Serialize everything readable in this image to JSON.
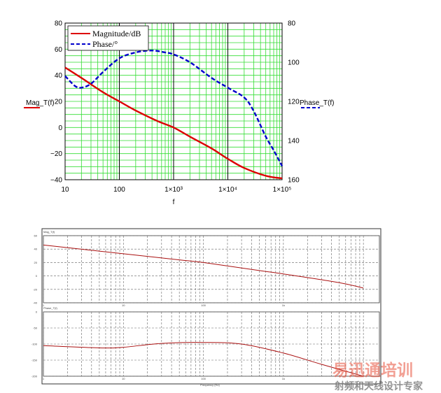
{
  "chart_data": [
    {
      "type": "line",
      "xscale": "log",
      "xlim": [
        10,
        100000
      ],
      "ylim_left": [
        -40,
        80
      ],
      "ylim_right": [
        160,
        80
      ],
      "xticks": [
        "10",
        "100",
        "1×10³",
        "1×10⁴",
        "1×10⁵"
      ],
      "yticks_left": [
        "80",
        "60",
        "40",
        "20",
        "0",
        "−20",
        "−40"
      ],
      "yticks_right": [
        "80",
        "100",
        "120",
        "140",
        "160"
      ],
      "xlabel": "f",
      "ylabel_left": "Mag_T(f)",
      "ylabel_right": "Phase_T(f)",
      "grid": true,
      "legend_position": "top-left",
      "colors": {
        "magnitude": "#dd0000",
        "phase": "#0000cc",
        "grid": "#33dd33",
        "decade": "#000000"
      },
      "series": [
        {
          "name": "Magnitude/dB",
          "axis": "left",
          "x": [
            10,
            20,
            50,
            100,
            200,
            500,
            1000,
            2000,
            5000,
            10000,
            20000,
            50000,
            100000
          ],
          "y": [
            46,
            38,
            27,
            20,
            13,
            5,
            0,
            -7,
            -16,
            -24,
            -31,
            -37,
            -39
          ]
        },
        {
          "name": "Phase/°",
          "axis": "right",
          "x": [
            10,
            15,
            20,
            30,
            50,
            100,
            200,
            400,
            700,
            1000,
            2000,
            5000,
            10000,
            20000,
            30000,
            50000,
            70000,
            100000
          ],
          "y": [
            107,
            112,
            113,
            111,
            105,
            98,
            95,
            94,
            95,
            96,
            100,
            108,
            113,
            118,
            125,
            138,
            145,
            153
          ]
        }
      ]
    },
    {
      "type": "line",
      "xscale": "log",
      "ylim": [
        -40,
        60
      ],
      "yticks": [
        "60",
        "40",
        "20",
        "0",
        "-20",
        "-40"
      ],
      "xticks": [
        "1",
        "10",
        "100",
        "1k"
      ],
      "top_title": "Mag_T(f)",
      "grid": true,
      "colors": {
        "curve": "#aa1111"
      },
      "series": [
        {
          "x": [
            1,
            5,
            10,
            50,
            100,
            500,
            1000,
            5000,
            10000
          ],
          "y": [
            46,
            37,
            33,
            24,
            20,
            8,
            3,
            -10,
            -18
          ]
        }
      ]
    },
    {
      "type": "line",
      "xscale": "log",
      "ylim": [
        -200,
        0
      ],
      "yticks": [
        "0",
        "-50",
        "-100",
        "-150",
        "-200"
      ],
      "xticks": [
        "1",
        "10",
        "100",
        "1k"
      ],
      "top_title": "Phase_T(f)",
      "xlabel": "Frequency (Hz)",
      "grid": true,
      "colors": {
        "curve": "#aa1111"
      },
      "series": [
        {
          "x": [
            1,
            5,
            10,
            30,
            100,
            300,
            1000,
            3000,
            10000
          ],
          "y": [
            -105,
            -112,
            -110,
            -98,
            -95,
            -100,
            -128,
            -163,
            -200
          ]
        }
      ]
    }
  ],
  "watermark": {
    "line1": "易迅通培训",
    "line2": "射频和天线设计专家"
  }
}
